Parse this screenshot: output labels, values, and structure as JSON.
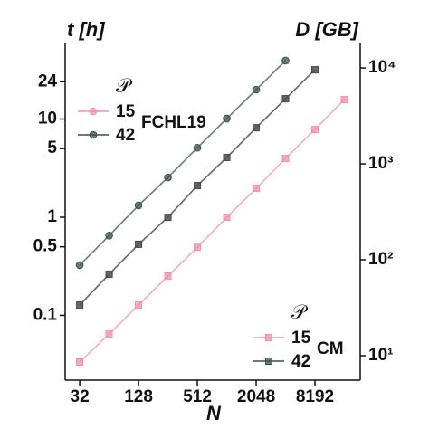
{
  "chart_data": {
    "type": "line",
    "xlabel": "N",
    "ylabel": "t [h]",
    "y2label": "D [GB]",
    "xscale": "log",
    "yscale": "log",
    "y2scale": "log",
    "xlim": [
      22.7,
      23800
    ],
    "ylim": [
      0.0219,
      58.9
    ],
    "y2lim": [
      5.56,
      18000
    ],
    "xticks": [
      32,
      128,
      512,
      2048,
      8192
    ],
    "yticks": [
      0.1,
      0.5,
      1,
      5,
      10,
      24
    ],
    "y2ticks": [
      {
        "value": 10,
        "label": "10¹"
      },
      {
        "value": 100,
        "label": "10²"
      },
      {
        "value": 1000,
        "label": "10³"
      },
      {
        "value": 10000,
        "label": "10⁴"
      }
    ],
    "legends": [
      {
        "title": "𝒫",
        "label": "FCHL19",
        "series": [
          0,
          1
        ]
      },
      {
        "title": "𝒫",
        "label": "CM",
        "series": [
          2,
          3
        ]
      }
    ],
    "series": [
      {
        "name": "15",
        "color": "#f28fb0",
        "marker": "circle",
        "axis": "y",
        "x": [
          32,
          64,
          128,
          256,
          512,
          1024,
          2048,
          4096,
          8192
        ],
        "values": [
          0.128,
          0.263,
          0.53,
          1.0,
          2.1,
          4.06,
          8.17,
          16.1,
          31.8
        ]
      },
      {
        "name": "42",
        "color": "#3f4f4f",
        "marker": "circle",
        "axis": "y",
        "x": [
          32,
          64,
          128,
          256,
          512,
          1024,
          2048,
          4096
        ],
        "values": [
          0.325,
          0.65,
          1.32,
          2.54,
          5.1,
          10.1,
          19.9,
          39.4
        ]
      },
      {
        "name": "15",
        "color": "#f28fb0",
        "marker": "square",
        "axis": "y2",
        "x": [
          32,
          64,
          128,
          256,
          512,
          1024,
          2048,
          4096,
          8192,
          16384
        ],
        "values": [
          8.6,
          16.8,
          33.7,
          67.6,
          135,
          277,
          556,
          1140,
          2280,
          4680
        ]
      },
      {
        "name": "42",
        "color": "#3f4f4f",
        "marker": "square",
        "axis": "y2",
        "x": [
          32,
          64,
          128,
          256,
          512,
          1024,
          2048,
          4096,
          8192
        ],
        "values": [
          33.7,
          70.6,
          145,
          277,
          594,
          1165,
          2380,
          4780,
          9570
        ]
      }
    ]
  }
}
